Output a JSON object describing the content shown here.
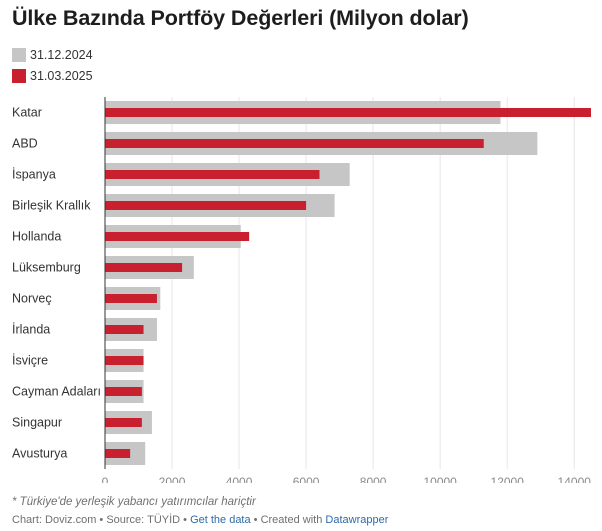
{
  "chart_data": {
    "type": "bar",
    "orientation": "horizontal",
    "title": "Ülke Bazında Portföy Değerleri (Milyon dolar)",
    "categories": [
      "Katar",
      "ABD",
      "İspanya",
      "Birleşik Krallık",
      "Hollanda",
      "Lüksemburg",
      "Norveç",
      "İrlanda",
      "İsviçre",
      "Cayman Adaları",
      "Singapur",
      "Avusturya"
    ],
    "series": [
      {
        "name": "31.12.2024",
        "color": "#c6c6c6",
        "values": [
          11800,
          12900,
          7300,
          6850,
          4050,
          2650,
          1650,
          1550,
          1150,
          1150,
          1400,
          1200
        ]
      },
      {
        "name": "31.03.2025",
        "color": "#c8202f",
        "values": [
          14500,
          11300,
          6400,
          6000,
          4300,
          2300,
          1550,
          1150,
          1150,
          1100,
          1100,
          750
        ]
      }
    ],
    "xlim": [
      0,
      14500
    ],
    "xticks": [
      "0",
      "2000",
      "4000",
      "6000",
      "8000",
      "10000",
      "12000",
      "14000"
    ],
    "grid": true,
    "legend_position": "top-left"
  },
  "footer": {
    "note": "* Türkiye'de yerleşik yabancı yatırımcılar hariçtir",
    "chart_label": "Chart: ",
    "chart_by": "Doviz.com",
    "source_label": " • Source: ",
    "source": "TÜYİD",
    "sep1": " • ",
    "get_data": "Get the data",
    "sep2": " • Created with ",
    "created_with": "Datawrapper"
  }
}
